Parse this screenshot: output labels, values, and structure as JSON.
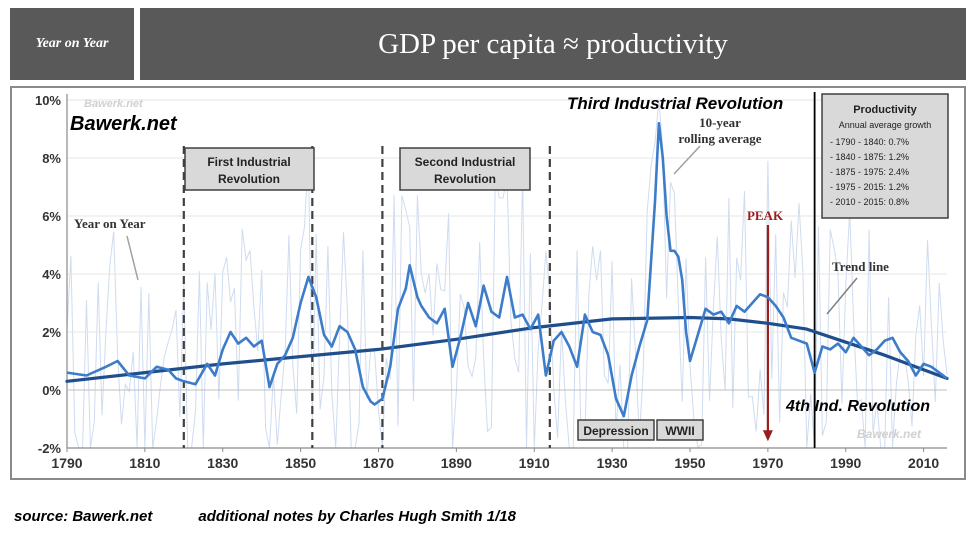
{
  "header": {
    "left_label": "Year on Year",
    "title": "GDP per capita ≈ productivity"
  },
  "watermarks": {
    "logo": "Bawerk.net",
    "faint_top": "Bawerk.net",
    "faint_bottom": "Bawerk.net"
  },
  "box_labels": {
    "first_ir": [
      "First Industrial",
      "Revolution"
    ],
    "second_ir": [
      "Second Industrial",
      "Revolution"
    ],
    "depression": "Depression",
    "wwii": "WWII"
  },
  "annotations": {
    "third_ir": "Third Industrial Revolution",
    "rolling_avg": [
      "10-year",
      "rolling average"
    ],
    "yoy": "Year on Year",
    "peak": "PEAK",
    "trend": "Trend line",
    "fourth_ir": "4th Ind. Revolution"
  },
  "productivity_box": {
    "title": "Productivity",
    "subtitle": "Annual average growth",
    "rows": [
      "- 1790 - 1840: 0.7%",
      "- 1840 - 1875: 1.2%",
      "- 1875 - 1975: 2.4%",
      "- 1975 - 2015: 1.2%",
      "- 2010 - 2015: 0.8%"
    ]
  },
  "footer": {
    "source": "source: Bawerk.net",
    "notes": "additional notes by Charles Hugh Smith  1/18"
  },
  "colors": {
    "line": "#3d7cc9",
    "trend": "#1f4e8c",
    "yoy": "#cfdcf0",
    "peak": "#9b1c1c",
    "banner": "#595959"
  },
  "chart_data": {
    "type": "line",
    "xlim": [
      1790,
      2016
    ],
    "ylim": [
      -2,
      10
    ],
    "x_ticks": [
      1790,
      1810,
      1830,
      1850,
      1870,
      1890,
      1910,
      1930,
      1950,
      1970,
      1990,
      2010
    ],
    "y_ticks": [
      -2,
      0,
      2,
      4,
      6,
      8,
      10
    ],
    "y_tick_labels": [
      "-2%",
      "0%",
      "2%",
      "4%",
      "6%",
      "8%",
      "10%"
    ],
    "markers": [
      1820,
      1853,
      1871,
      1914
    ],
    "current_marker": 1982,
    "peak_year": 1970,
    "series": [
      {
        "kind": "rolling",
        "x": [
          1790,
          1795,
          1800,
          1803,
          1806,
          1810,
          1813,
          1816,
          1818,
          1820,
          1823,
          1826,
          1828,
          1830,
          1832,
          1834,
          1836,
          1838,
          1840,
          1842,
          1844,
          1846,
          1848,
          1850,
          1852,
          1854,
          1856,
          1858,
          1860,
          1862,
          1864,
          1866,
          1868,
          1869,
          1871,
          1873,
          1875,
          1877,
          1878,
          1880,
          1881,
          1883,
          1885,
          1887,
          1889,
          1891,
          1893,
          1895,
          1897,
          1899,
          1901,
          1903,
          1905,
          1907,
          1909,
          1911,
          1913,
          1915,
          1917,
          1919,
          1921,
          1923,
          1925,
          1927,
          1929,
          1931,
          1933,
          1935,
          1937,
          1939,
          1941,
          1942,
          1943,
          1944,
          1945,
          1946,
          1947,
          1948,
          1949,
          1950,
          1952,
          1954,
          1956,
          1958,
          1960,
          1962,
          1964,
          1966,
          1968,
          1970,
          1972,
          1974,
          1976,
          1978,
          1980,
          1982,
          1984,
          1986,
          1988,
          1990,
          1992,
          1994,
          1996,
          1998,
          2000,
          2002,
          2004,
          2006,
          2008,
          2010,
          2012,
          2014,
          2016
        ],
        "y": [
          0.6,
          0.5,
          0.8,
          1.0,
          0.5,
          0.4,
          0.8,
          0.7,
          0.4,
          0.3,
          0.2,
          0.9,
          0.5,
          1.4,
          2.0,
          1.6,
          1.8,
          1.5,
          1.7,
          0.1,
          0.9,
          1.2,
          1.8,
          3.0,
          3.9,
          3.2,
          1.9,
          1.5,
          2.2,
          2.0,
          1.4,
          0.1,
          -0.4,
          -0.5,
          -0.3,
          0.8,
          2.8,
          3.5,
          4.3,
          3.2,
          2.9,
          2.5,
          2.3,
          2.8,
          0.8,
          1.8,
          3.0,
          2.2,
          3.6,
          2.7,
          2.5,
          3.9,
          2.5,
          2.6,
          2.1,
          2.6,
          0.5,
          1.7,
          2.0,
          1.5,
          0.8,
          2.6,
          2.0,
          1.9,
          1.2,
          -0.3,
          -0.9,
          0.5,
          1.5,
          2.4,
          6.5,
          9.2,
          8.0,
          6.0,
          4.8,
          4.8,
          4.6,
          3.8,
          2.0,
          1.0,
          1.9,
          2.8,
          2.6,
          2.7,
          2.3,
          2.9,
          2.7,
          3.0,
          3.3,
          3.2,
          2.9,
          2.5,
          1.8,
          1.7,
          1.6,
          0.6,
          1.5,
          1.4,
          1.6,
          1.3,
          1.8,
          1.5,
          1.2,
          1.4,
          1.7,
          1.8,
          1.3,
          1.0,
          0.5,
          0.9,
          0.8,
          0.6,
          0.4
        ]
      },
      {
        "kind": "trend",
        "x": [
          1790,
          1810,
          1830,
          1850,
          1870,
          1890,
          1910,
          1930,
          1950,
          1960,
          1970,
          1980,
          1990,
          2000,
          2010,
          2016
        ],
        "y": [
          0.3,
          0.6,
          0.9,
          1.15,
          1.4,
          1.75,
          2.15,
          2.45,
          2.5,
          2.45,
          2.3,
          2.1,
          1.65,
          1.2,
          0.7,
          0.4
        ]
      }
    ]
  }
}
